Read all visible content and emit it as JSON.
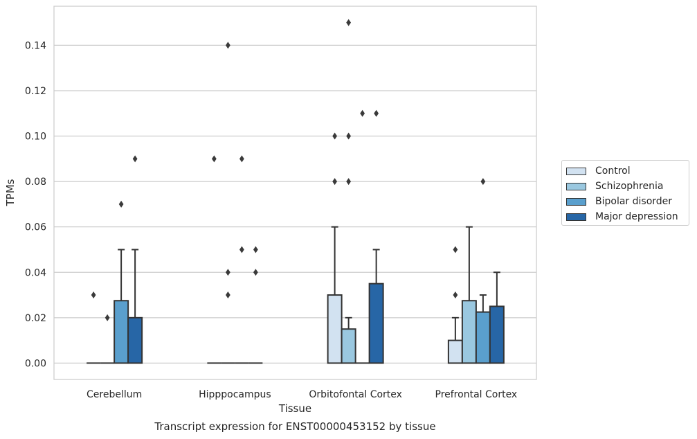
{
  "chart_data": {
    "type": "bar",
    "title": "Transcript expression for ENST00000453152 by tissue",
    "xlabel": "Tissue",
    "ylabel": "TPMs",
    "ylim": [
      -0.0072,
      0.1572
    ],
    "yticks": [
      0.0,
      0.02,
      0.04,
      0.06,
      0.08,
      0.1,
      0.12,
      0.14
    ],
    "ytick_labels": [
      "0.00",
      "0.02",
      "0.04",
      "0.06",
      "0.08",
      "0.10",
      "0.12",
      "0.14"
    ],
    "grid": true,
    "legend_position": "right",
    "categories": [
      "Cerebellum",
      "Hipppocampus",
      "Orbitofontal Cortex",
      "Prefrontal Cortex"
    ],
    "series": [
      {
        "name": "Control",
        "color": "#d2e2f1",
        "values": [
          0.0,
          0.0,
          0.03,
          0.01
        ],
        "whisker_high": [
          0.0,
          0.0,
          0.06,
          0.02
        ],
        "outliers": [
          [
            0.03
          ],
          [
            0.09
          ],
          [
            0.1,
            0.08
          ],
          [
            0.05,
            0.03
          ]
        ]
      },
      {
        "name": "Schizophrenia",
        "color": "#9ac8e0",
        "values": [
          0.0,
          0.0,
          0.015,
          0.0275
        ],
        "whisker_high": [
          0.0,
          0.0,
          0.02,
          0.06
        ],
        "outliers": [
          [
            0.02
          ],
          [
            0.14,
            0.04,
            0.03
          ],
          [
            0.15,
            0.1,
            0.08
          ],
          []
        ]
      },
      {
        "name": "Bipolar disorder",
        "color": "#5a9fcd",
        "values": [
          0.0275,
          0.0,
          0.0,
          0.0225
        ],
        "whisker_high": [
          0.05,
          0.0,
          0.0,
          0.03
        ],
        "outliers": [
          [
            0.07
          ],
          [
            0.09,
            0.05
          ],
          [
            0.11
          ],
          [
            0.08
          ]
        ]
      },
      {
        "name": "Major depression",
        "color": "#2766a6",
        "values": [
          0.02,
          0.0,
          0.035,
          0.025
        ],
        "whisker_high": [
          0.05,
          0.0,
          0.05,
          0.04
        ],
        "outliers": [
          [
            0.09
          ],
          [
            0.05,
            0.04
          ],
          [
            0.11
          ],
          []
        ]
      }
    ]
  }
}
